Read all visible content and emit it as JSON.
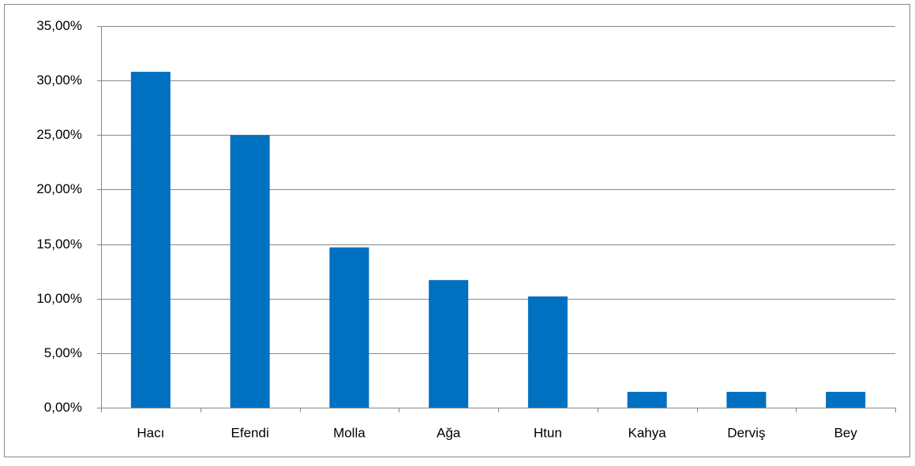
{
  "chart_data": {
    "type": "bar",
    "categories": [
      "Hacı",
      "Efendi",
      "Molla",
      "Ağa",
      "Htun",
      "Kahya",
      "Derviş",
      "Bey"
    ],
    "values": [
      30.8,
      25.0,
      14.7,
      11.7,
      10.2,
      1.45,
      1.45,
      1.45
    ],
    "color": "#0070c0",
    "ylim": [
      0,
      35
    ],
    "yticks": [
      {
        "value": 0,
        "label": "0,00%"
      },
      {
        "value": 5,
        "label": "5,00%"
      },
      {
        "value": 10,
        "label": "10,00%"
      },
      {
        "value": 15,
        "label": "15,00%"
      },
      {
        "value": 20,
        "label": "20,00%"
      },
      {
        "value": 25,
        "label": "25,00%"
      },
      {
        "value": 30,
        "label": "30,00%"
      },
      {
        "value": 35,
        "label": "35,00%"
      }
    ],
    "grid": true
  }
}
